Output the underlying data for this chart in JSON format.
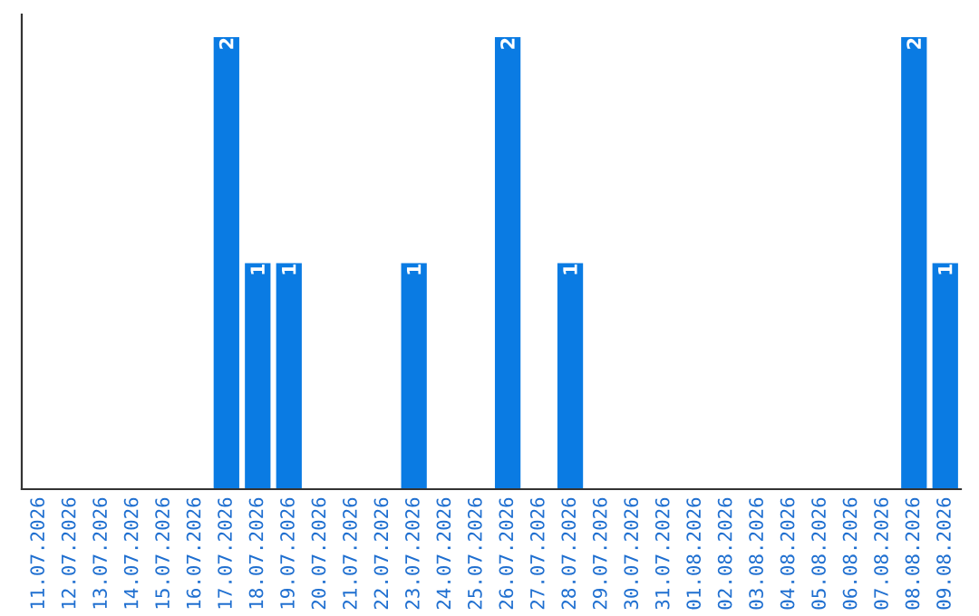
{
  "chart_data": {
    "type": "bar",
    "categories": [
      "11.07.2026",
      "12.07.2026",
      "13.07.2026",
      "14.07.2026",
      "15.07.2026",
      "16.07.2026",
      "17.07.2026",
      "18.07.2026",
      "19.07.2026",
      "20.07.2026",
      "21.07.2026",
      "22.07.2026",
      "23.07.2026",
      "24.07.2026",
      "25.07.2026",
      "26.07.2026",
      "27.07.2026",
      "28.07.2026",
      "29.07.2026",
      "30.07.2026",
      "31.07.2026",
      "01.08.2026",
      "02.08.2026",
      "03.08.2026",
      "04.08.2026",
      "05.08.2026",
      "06.08.2026",
      "07.08.2026",
      "08.08.2026",
      "09.08.2026"
    ],
    "values": [
      0,
      0,
      0,
      0,
      0,
      0,
      2,
      1,
      1,
      0,
      0,
      0,
      1,
      0,
      0,
      2,
      0,
      1,
      0,
      0,
      0,
      0,
      0,
      0,
      0,
      0,
      0,
      0,
      2,
      1
    ],
    "value_labels": [
      null,
      null,
      null,
      null,
      null,
      null,
      "2",
      "1",
      "1",
      null,
      null,
      null,
      "1",
      null,
      null,
      "2",
      null,
      "1",
      null,
      null,
      null,
      null,
      null,
      null,
      null,
      null,
      null,
      null,
      "2",
      "1"
    ],
    "color": "#0a7be3",
    "tick_labels": "x",
    "grid": false
  }
}
